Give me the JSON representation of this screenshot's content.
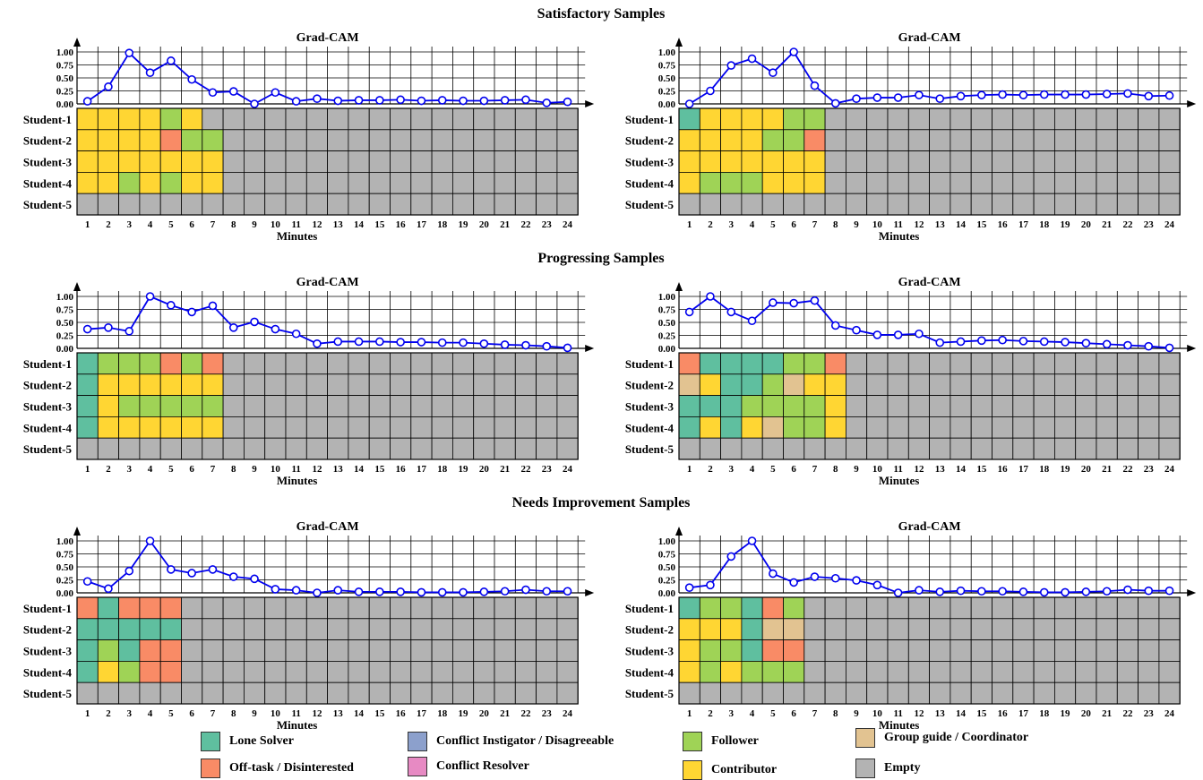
{
  "chart_data": [
    {
      "type": "line+heatmap",
      "section": "Satisfactory Samples",
      "title": "Grad-CAM",
      "xlabel": "Minutes",
      "x": [
        1,
        2,
        3,
        4,
        5,
        6,
        7,
        8,
        9,
        10,
        11,
        12,
        13,
        14,
        15,
        16,
        17,
        18,
        19,
        20,
        21,
        22,
        23,
        24
      ],
      "yticks": [
        "0.00",
        "0.25",
        "0.50",
        "0.75",
        "1.00"
      ],
      "ylim": [
        0,
        1
      ],
      "line_values": [
        0.05,
        0.33,
        0.98,
        0.6,
        0.83,
        0.47,
        0.22,
        0.24,
        0.0,
        0.22,
        0.05,
        0.1,
        0.06,
        0.07,
        0.07,
        0.08,
        0.06,
        0.07,
        0.06,
        0.06,
        0.07,
        0.08,
        0.02,
        0.04
      ],
      "students": [
        "Student-1",
        "Student-2",
        "Student-3",
        "Student-4",
        "Student-5"
      ],
      "grid": [
        [
          "C",
          "C",
          "C",
          "C",
          "F",
          "C",
          "E",
          "E",
          "E",
          "E",
          "E",
          "E",
          "E",
          "E",
          "E",
          "E",
          "E",
          "E",
          "E",
          "E",
          "E",
          "E",
          "E",
          "E"
        ],
        [
          "C",
          "C",
          "C",
          "C",
          "O",
          "F",
          "F",
          "E",
          "E",
          "E",
          "E",
          "E",
          "E",
          "E",
          "E",
          "E",
          "E",
          "E",
          "E",
          "E",
          "E",
          "E",
          "E",
          "E"
        ],
        [
          "C",
          "C",
          "C",
          "C",
          "C",
          "C",
          "C",
          "E",
          "E",
          "E",
          "E",
          "E",
          "E",
          "E",
          "E",
          "E",
          "E",
          "E",
          "E",
          "E",
          "E",
          "E",
          "E",
          "E"
        ],
        [
          "C",
          "C",
          "F",
          "C",
          "F",
          "C",
          "C",
          "E",
          "E",
          "E",
          "E",
          "E",
          "E",
          "E",
          "E",
          "E",
          "E",
          "E",
          "E",
          "E",
          "E",
          "E",
          "E",
          "E"
        ],
        [
          "E",
          "E",
          "E",
          "E",
          "E",
          "E",
          "E",
          "E",
          "E",
          "E",
          "E",
          "E",
          "E",
          "E",
          "E",
          "E",
          "E",
          "E",
          "E",
          "E",
          "E",
          "E",
          "E",
          "E"
        ]
      ]
    },
    {
      "type": "line+heatmap",
      "section": "Satisfactory Samples",
      "title": "Grad-CAM",
      "xlabel": "Minutes",
      "x": [
        1,
        2,
        3,
        4,
        5,
        6,
        7,
        8,
        9,
        10,
        11,
        12,
        13,
        14,
        15,
        16,
        17,
        18,
        19,
        20,
        21,
        22,
        23,
        24
      ],
      "yticks": [
        "0.00",
        "0.25",
        "0.50",
        "0.75",
        "1.00"
      ],
      "ylim": [
        0,
        1
      ],
      "line_values": [
        0.0,
        0.25,
        0.74,
        0.87,
        0.6,
        1.0,
        0.35,
        0.01,
        0.1,
        0.12,
        0.12,
        0.17,
        0.1,
        0.15,
        0.17,
        0.18,
        0.17,
        0.18,
        0.18,
        0.18,
        0.19,
        0.2,
        0.15,
        0.16
      ],
      "students": [
        "Student-1",
        "Student-2",
        "Student-3",
        "Student-4",
        "Student-5"
      ],
      "grid": [
        [
          "L",
          "C",
          "C",
          "C",
          "C",
          "F",
          "F",
          "E",
          "E",
          "E",
          "E",
          "E",
          "E",
          "E",
          "E",
          "E",
          "E",
          "E",
          "E",
          "E",
          "E",
          "E",
          "E",
          "E"
        ],
        [
          "C",
          "C",
          "C",
          "C",
          "F",
          "F",
          "O",
          "E",
          "E",
          "E",
          "E",
          "E",
          "E",
          "E",
          "E",
          "E",
          "E",
          "E",
          "E",
          "E",
          "E",
          "E",
          "E",
          "E"
        ],
        [
          "C",
          "C",
          "C",
          "C",
          "C",
          "C",
          "C",
          "E",
          "E",
          "E",
          "E",
          "E",
          "E",
          "E",
          "E",
          "E",
          "E",
          "E",
          "E",
          "E",
          "E",
          "E",
          "E",
          "E"
        ],
        [
          "C",
          "F",
          "F",
          "F",
          "C",
          "C",
          "C",
          "E",
          "E",
          "E",
          "E",
          "E",
          "E",
          "E",
          "E",
          "E",
          "E",
          "E",
          "E",
          "E",
          "E",
          "E",
          "E",
          "E"
        ],
        [
          "E",
          "E",
          "E",
          "E",
          "E",
          "E",
          "E",
          "E",
          "E",
          "E",
          "E",
          "E",
          "E",
          "E",
          "E",
          "E",
          "E",
          "E",
          "E",
          "E",
          "E",
          "E",
          "E",
          "E"
        ]
      ]
    },
    {
      "type": "line+heatmap",
      "section": "Progressing Samples",
      "title": "Grad-CAM",
      "xlabel": "Minutes",
      "x": [
        1,
        2,
        3,
        4,
        5,
        6,
        7,
        8,
        9,
        10,
        11,
        12,
        13,
        14,
        15,
        16,
        17,
        18,
        19,
        20,
        21,
        22,
        23,
        24
      ],
      "yticks": [
        "0.00",
        "0.25",
        "0.50",
        "0.75",
        "1.00"
      ],
      "ylim": [
        0,
        1
      ],
      "line_values": [
        0.37,
        0.4,
        0.33,
        1.0,
        0.83,
        0.7,
        0.82,
        0.4,
        0.51,
        0.37,
        0.28,
        0.09,
        0.13,
        0.13,
        0.13,
        0.12,
        0.12,
        0.11,
        0.11,
        0.09,
        0.07,
        0.06,
        0.04,
        0.01
      ],
      "students": [
        "Student-1",
        "Student-2",
        "Student-3",
        "Student-4",
        "Student-5"
      ],
      "grid": [
        [
          "L",
          "F",
          "F",
          "F",
          "O",
          "F",
          "O",
          "E",
          "E",
          "E",
          "E",
          "E",
          "E",
          "E",
          "E",
          "E",
          "E",
          "E",
          "E",
          "E",
          "E",
          "E",
          "E",
          "E"
        ],
        [
          "L",
          "C",
          "C",
          "C",
          "C",
          "C",
          "C",
          "E",
          "E",
          "E",
          "E",
          "E",
          "E",
          "E",
          "E",
          "E",
          "E",
          "E",
          "E",
          "E",
          "E",
          "E",
          "E",
          "E"
        ],
        [
          "L",
          "C",
          "F",
          "F",
          "F",
          "F",
          "F",
          "E",
          "E",
          "E",
          "E",
          "E",
          "E",
          "E",
          "E",
          "E",
          "E",
          "E",
          "E",
          "E",
          "E",
          "E",
          "E",
          "E"
        ],
        [
          "L",
          "C",
          "C",
          "C",
          "C",
          "C",
          "C",
          "E",
          "E",
          "E",
          "E",
          "E",
          "E",
          "E",
          "E",
          "E",
          "E",
          "E",
          "E",
          "E",
          "E",
          "E",
          "E",
          "E"
        ],
        [
          "E",
          "E",
          "E",
          "E",
          "E",
          "E",
          "E",
          "E",
          "E",
          "E",
          "E",
          "E",
          "E",
          "E",
          "E",
          "E",
          "E",
          "E",
          "E",
          "E",
          "E",
          "E",
          "E",
          "E"
        ]
      ]
    },
    {
      "type": "line+heatmap",
      "section": "Progressing Samples",
      "title": "Grad-CAM",
      "xlabel": "Minutes",
      "x": [
        1,
        2,
        3,
        4,
        5,
        6,
        7,
        8,
        9,
        10,
        11,
        12,
        13,
        14,
        15,
        16,
        17,
        18,
        19,
        20,
        21,
        22,
        23,
        24
      ],
      "yticks": [
        "0.00",
        "0.25",
        "0.50",
        "0.75",
        "1.00"
      ],
      "ylim": [
        0,
        1
      ],
      "line_values": [
        0.7,
        1.0,
        0.7,
        0.53,
        0.88,
        0.87,
        0.92,
        0.44,
        0.35,
        0.26,
        0.26,
        0.28,
        0.11,
        0.13,
        0.15,
        0.16,
        0.14,
        0.13,
        0.12,
        0.1,
        0.08,
        0.06,
        0.04,
        0.01
      ],
      "students": [
        "Student-1",
        "Student-2",
        "Student-3",
        "Student-4",
        "Student-5"
      ],
      "grid": [
        [
          "O",
          "L",
          "L",
          "L",
          "L",
          "F",
          "F",
          "O",
          "E",
          "E",
          "E",
          "E",
          "E",
          "E",
          "E",
          "E",
          "E",
          "E",
          "E",
          "E",
          "E",
          "E",
          "E",
          "E"
        ],
        [
          "G",
          "C",
          "L",
          "L",
          "F",
          "G",
          "C",
          "C",
          "E",
          "E",
          "E",
          "E",
          "E",
          "E",
          "E",
          "E",
          "E",
          "E",
          "E",
          "E",
          "E",
          "E",
          "E",
          "E"
        ],
        [
          "L",
          "L",
          "L",
          "F",
          "F",
          "F",
          "F",
          "C",
          "E",
          "E",
          "E",
          "E",
          "E",
          "E",
          "E",
          "E",
          "E",
          "E",
          "E",
          "E",
          "E",
          "E",
          "E",
          "E"
        ],
        [
          "L",
          "C",
          "L",
          "C",
          "G",
          "F",
          "F",
          "C",
          "E",
          "E",
          "E",
          "E",
          "E",
          "E",
          "E",
          "E",
          "E",
          "E",
          "E",
          "E",
          "E",
          "E",
          "E",
          "E"
        ],
        [
          "E",
          "E",
          "E",
          "E",
          "E",
          "E",
          "E",
          "E",
          "E",
          "E",
          "E",
          "E",
          "E",
          "E",
          "E",
          "E",
          "E",
          "E",
          "E",
          "E",
          "E",
          "E",
          "E",
          "E"
        ]
      ]
    },
    {
      "type": "line+heatmap",
      "section": "Needs Improvement Samples",
      "title": "Grad-CAM",
      "xlabel": "Minutes",
      "x": [
        1,
        2,
        3,
        4,
        5,
        6,
        7,
        8,
        9,
        10,
        11,
        12,
        13,
        14,
        15,
        16,
        17,
        18,
        19,
        20,
        21,
        22,
        23,
        24
      ],
      "yticks": [
        "0.00",
        "0.25",
        "0.50",
        "0.75",
        "1.00"
      ],
      "ylim": [
        0,
        1
      ],
      "line_values": [
        0.22,
        0.08,
        0.42,
        1.0,
        0.45,
        0.38,
        0.45,
        0.31,
        0.27,
        0.07,
        0.05,
        0.0,
        0.05,
        0.02,
        0.02,
        0.02,
        0.01,
        0.01,
        0.01,
        0.02,
        0.03,
        0.06,
        0.03,
        0.03
      ],
      "students": [
        "Student-1",
        "Student-2",
        "Student-3",
        "Student-4",
        "Student-5"
      ],
      "grid": [
        [
          "O",
          "L",
          "O",
          "O",
          "O",
          "E",
          "E",
          "E",
          "E",
          "E",
          "E",
          "E",
          "E",
          "E",
          "E",
          "E",
          "E",
          "E",
          "E",
          "E",
          "E",
          "E",
          "E",
          "E"
        ],
        [
          "L",
          "L",
          "L",
          "L",
          "L",
          "E",
          "E",
          "E",
          "E",
          "E",
          "E",
          "E",
          "E",
          "E",
          "E",
          "E",
          "E",
          "E",
          "E",
          "E",
          "E",
          "E",
          "E",
          "E"
        ],
        [
          "L",
          "F",
          "L",
          "O",
          "O",
          "E",
          "E",
          "E",
          "E",
          "E",
          "E",
          "E",
          "E",
          "E",
          "E",
          "E",
          "E",
          "E",
          "E",
          "E",
          "E",
          "E",
          "E",
          "E"
        ],
        [
          "L",
          "C",
          "F",
          "O",
          "O",
          "E",
          "E",
          "E",
          "E",
          "E",
          "E",
          "E",
          "E",
          "E",
          "E",
          "E",
          "E",
          "E",
          "E",
          "E",
          "E",
          "E",
          "E",
          "E"
        ],
        [
          "E",
          "E",
          "E",
          "E",
          "E",
          "E",
          "E",
          "E",
          "E",
          "E",
          "E",
          "E",
          "E",
          "E",
          "E",
          "E",
          "E",
          "E",
          "E",
          "E",
          "E",
          "E",
          "E",
          "E"
        ]
      ]
    },
    {
      "type": "line+heatmap",
      "section": "Needs Improvement Samples",
      "title": "Grad-CAM",
      "xlabel": "Minutes",
      "x": [
        1,
        2,
        3,
        4,
        5,
        6,
        7,
        8,
        9,
        10,
        11,
        12,
        13,
        14,
        15,
        16,
        17,
        18,
        19,
        20,
        21,
        22,
        23,
        24
      ],
      "yticks": [
        "0.00",
        "0.25",
        "0.50",
        "0.75",
        "1.00"
      ],
      "ylim": [
        0,
        1
      ],
      "line_values": [
        0.1,
        0.15,
        0.7,
        1.0,
        0.37,
        0.2,
        0.31,
        0.28,
        0.24,
        0.15,
        0.0,
        0.05,
        0.02,
        0.04,
        0.03,
        0.03,
        0.02,
        0.01,
        0.01,
        0.02,
        0.03,
        0.06,
        0.04,
        0.04
      ],
      "students": [
        "Student-1",
        "Student-2",
        "Student-3",
        "Student-4",
        "Student-5"
      ],
      "grid": [
        [
          "L",
          "F",
          "F",
          "L",
          "O",
          "F",
          "E",
          "E",
          "E",
          "E",
          "E",
          "E",
          "E",
          "E",
          "E",
          "E",
          "E",
          "E",
          "E",
          "E",
          "E",
          "E",
          "E",
          "E"
        ],
        [
          "C",
          "C",
          "C",
          "L",
          "G",
          "G",
          "E",
          "E",
          "E",
          "E",
          "E",
          "E",
          "E",
          "E",
          "E",
          "E",
          "E",
          "E",
          "E",
          "E",
          "E",
          "E",
          "E",
          "E"
        ],
        [
          "C",
          "F",
          "F",
          "L",
          "O",
          "O",
          "E",
          "E",
          "E",
          "E",
          "E",
          "E",
          "E",
          "E",
          "E",
          "E",
          "E",
          "E",
          "E",
          "E",
          "E",
          "E",
          "E",
          "E"
        ],
        [
          "C",
          "F",
          "C",
          "F",
          "F",
          "F",
          "E",
          "E",
          "E",
          "E",
          "E",
          "E",
          "E",
          "E",
          "E",
          "E",
          "E",
          "E",
          "E",
          "E",
          "E",
          "E",
          "E",
          "E"
        ],
        [
          "E",
          "E",
          "E",
          "E",
          "E",
          "E",
          "E",
          "E",
          "E",
          "E",
          "E",
          "E",
          "E",
          "E",
          "E",
          "E",
          "E",
          "E",
          "E",
          "E",
          "E",
          "E",
          "E",
          "E"
        ]
      ]
    }
  ],
  "sections": [
    "Satisfactory Samples",
    "Progressing Samples",
    "Needs Improvement Samples"
  ],
  "legend": [
    {
      "code": "L",
      "label": "Lone Solver",
      "color": "#5fbf9f"
    },
    {
      "code": "I",
      "label": "Conflict Instigator / Disagreeable",
      "color": "#8ca0cc"
    },
    {
      "code": "F",
      "label": "Follower",
      "color": "#9fd356"
    },
    {
      "code": "G",
      "label": "Group guide / Coordinator",
      "color": "#e2c391"
    },
    {
      "code": "O",
      "label": "Off-task / Disinterested",
      "color": "#f98b66"
    },
    {
      "code": "R",
      "label": "Conflict Resolver",
      "color": "#e78ac3"
    },
    {
      "code": "C",
      "label": "Contributor",
      "color": "#ffd633"
    },
    {
      "code": "E",
      "label": "Empty",
      "color": "#b3b3b3"
    }
  ],
  "line_color": "#0000ee"
}
